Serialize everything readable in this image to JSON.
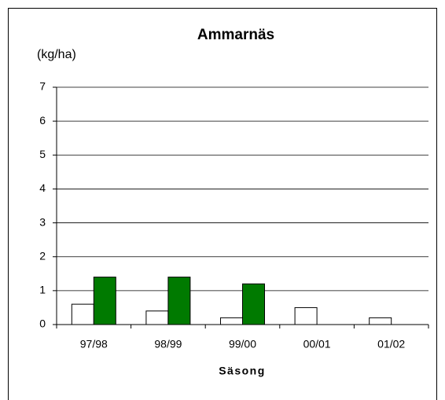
{
  "chart_data": {
    "type": "bar",
    "title": "Ammarnäs",
    "y_label": "(kg/ha)",
    "x_label": "Säsong",
    "categories": [
      "97/98",
      "98/99",
      "99/00",
      "00/01",
      "01/02"
    ],
    "series": [
      {
        "color": "#ffffff",
        "values": [
          0.6,
          0.4,
          0.2,
          0.5,
          0.2
        ]
      },
      {
        "color": "#007a00",
        "values": [
          1.4,
          1.4,
          1.2,
          null,
          null
        ]
      }
    ],
    "ylim": [
      0,
      7
    ],
    "yticks": [
      0,
      1,
      2,
      3,
      4,
      5,
      6,
      7
    ],
    "grid": true
  }
}
